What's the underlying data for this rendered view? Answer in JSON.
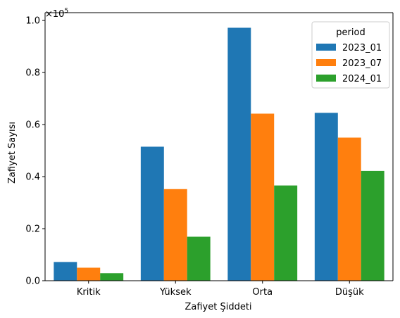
{
  "chart_data": {
    "type": "bar",
    "title": "",
    "xlabel": "Zafiyet Şiddeti",
    "ylabel": "Zafiyet Sayısı",
    "y_multiplier_base": "×10",
    "y_multiplier_exponent": "5",
    "categories": [
      "Kritik",
      "Yüksek",
      "Orta",
      "Düşük"
    ],
    "ylim": [
      0,
      1.03
    ],
    "yticks": [
      0.0,
      0.2,
      0.4,
      0.6,
      0.8,
      1.0
    ],
    "ytick_labels": [
      "0.0",
      "0.2",
      "0.4",
      "0.6",
      "0.8",
      "1.0"
    ],
    "legend_title": "period",
    "legend_position": "top-right",
    "grid": false,
    "series": [
      {
        "name": "2023_01",
        "color": "#1f77b4",
        "values": [
          0.072,
          0.515,
          0.972,
          0.645
        ]
      },
      {
        "name": "2023_07",
        "color": "#ff7f0e",
        "values": [
          0.05,
          0.352,
          0.642,
          0.55
        ]
      },
      {
        "name": "2024_01",
        "color": "#2ca02c",
        "values": [
          0.029,
          0.169,
          0.366,
          0.422
        ]
      }
    ]
  }
}
